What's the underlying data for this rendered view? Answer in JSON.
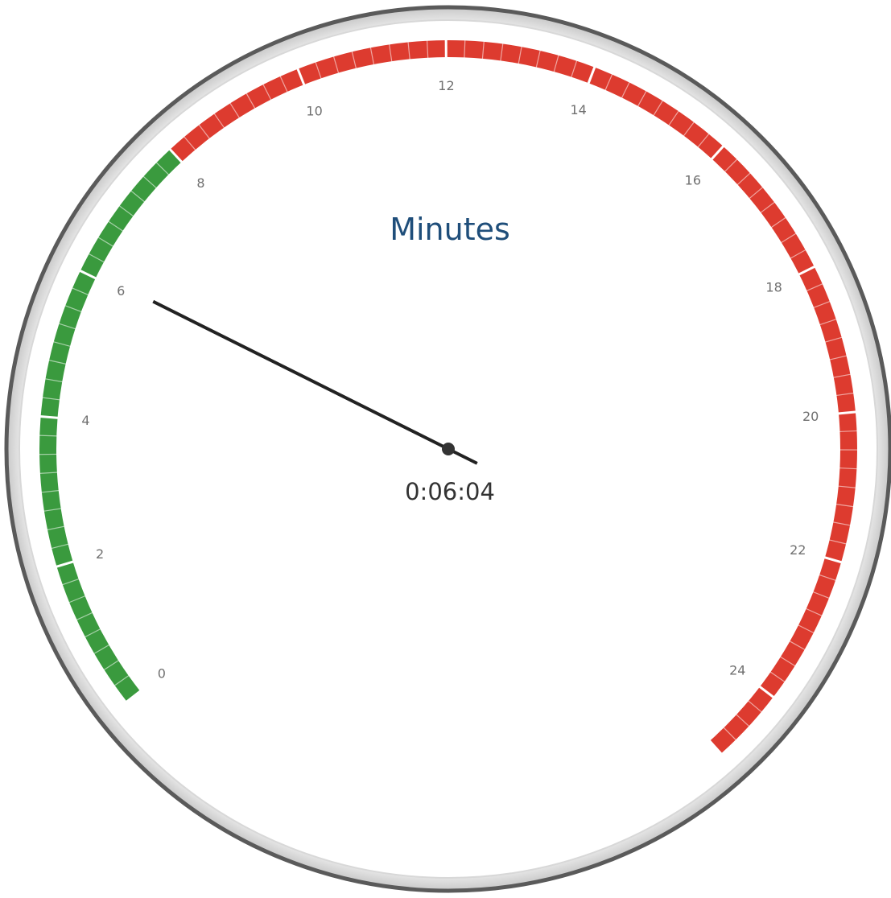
{
  "chart_data": {
    "type": "gauge",
    "title": "Minutes",
    "readout": "0:06:04",
    "value": 6.067,
    "scale": {
      "min": 0,
      "max": 25
    },
    "tick_labels": [
      "0",
      "2",
      "4",
      "6",
      "8",
      "10",
      "12",
      "14",
      "16",
      "18",
      "20",
      "22",
      "24"
    ],
    "ranges": [
      {
        "from": 0,
        "to": 8,
        "color": "#3a9a3e"
      },
      {
        "from": 8,
        "to": 25,
        "color": "#dd3b2f"
      }
    ]
  },
  "colors": {
    "bezel": "#555555",
    "face": "#ffffff",
    "needle": "#222222",
    "title": "#1f4e7a",
    "readout": "#333333",
    "tick_text": "#707070"
  }
}
